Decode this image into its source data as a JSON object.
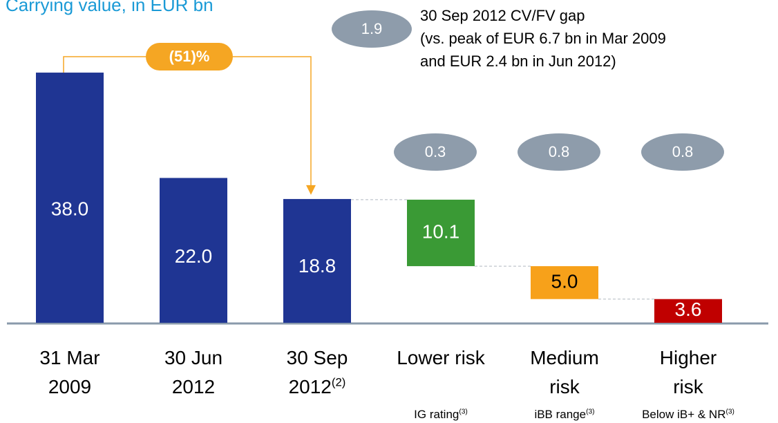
{
  "chart_data": {
    "type": "waterfall",
    "title": "Carrying value, in EUR bn",
    "categories": [
      "31 Mar\n2009",
      "30 Jun\n2012",
      "30 Sep\n2012",
      "Lower risk",
      "Medium\nrisk",
      "Higher\nrisk"
    ],
    "category_notes": [
      null,
      null,
      "(2)",
      null,
      null,
      null
    ],
    "sublabels": [
      null,
      null,
      null,
      "IG rating",
      "iBB range",
      "Below iB+ & NR"
    ],
    "sublabel_notes": [
      null,
      null,
      null,
      "(3)",
      "(3)",
      "(3)"
    ],
    "values": [
      38,
      22,
      18.8,
      10.1,
      5,
      3.6
    ],
    "value_labels": [
      "38.0",
      "22.0",
      "18.8",
      "10.1",
      "5.0",
      "3.6"
    ],
    "measure": [
      "total",
      "total",
      "total",
      "part",
      "part",
      "part"
    ],
    "colors": [
      "#1f3593",
      "#1f3593",
      "#1f3593",
      "#3a9a35",
      "#f7a11a",
      "#c00000"
    ],
    "label_colors": [
      "#ffffff",
      "#ffffff",
      "#ffffff",
      "#ffffff",
      "#000000",
      "#ffffff"
    ],
    "ylim": [
      0,
      40
    ],
    "gap_values": [
      null,
      null,
      null,
      0.3,
      0.8,
      0.8
    ],
    "gap_total": 1.9,
    "gap_note": [
      "30 Sep 2012 CV/FV gap",
      "(vs. peak of EUR 6.7 bn in Mar 2009",
      "and EUR 2.4 bn in Jun 2012)"
    ],
    "change_label": "(51)%"
  }
}
